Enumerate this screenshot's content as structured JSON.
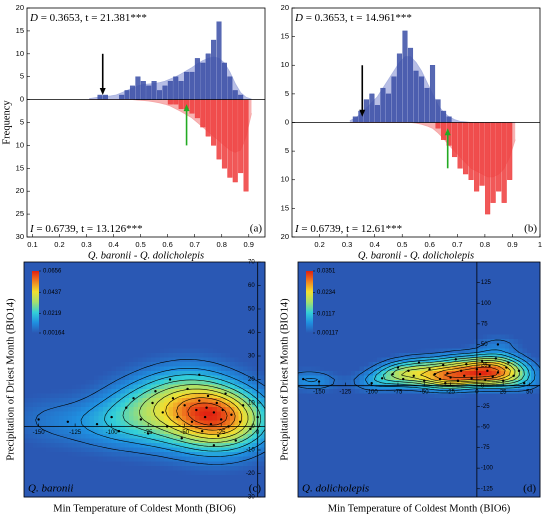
{
  "chart_data": [
    {
      "type": "mirrored_histogram",
      "stat_top": "D",
      "text_top": " = 0.3653, t = 21.381***",
      "stat_bottom": "I",
      "text_bottom": " = 0.6739, t = 13.126***",
      "panel_label": "(a)",
      "xlabel": "Q. baronii - Q. dolicholepis",
      "ylabel": "Frequency",
      "xlim": [
        0.08,
        0.96
      ],
      "xticks": [
        0.1,
        0.2,
        0.3,
        0.4,
        0.5,
        0.6,
        0.7,
        0.8,
        0.9
      ],
      "ylim": [
        0,
        20
      ],
      "yticks": [
        0,
        5,
        10,
        15,
        20
      ],
      "y2lim": [
        0,
        30
      ],
      "y2ticks": [
        5,
        10,
        15,
        20,
        25,
        30
      ],
      "y2_inverted": true,
      "bins": [
        0.3,
        0.32,
        0.34,
        0.36,
        0.38,
        0.4,
        0.42,
        0.44,
        0.46,
        0.48,
        0.5,
        0.52,
        0.54,
        0.56,
        0.58,
        0.6,
        0.62,
        0.64,
        0.66,
        0.68,
        0.7,
        0.72,
        0.74,
        0.76,
        0.78,
        0.8,
        0.82,
        0.84,
        0.86,
        0.88,
        0.9,
        0.92
      ],
      "series": [
        {
          "color": "#3a4ea6",
          "kde_color": "#aab3e0",
          "axis": "y",
          "values": [
            0,
            0,
            1,
            1,
            0,
            0,
            1,
            2,
            3,
            5,
            4,
            3,
            4,
            2,
            3,
            4,
            5,
            4,
            6,
            6,
            9,
            8,
            10,
            13,
            17,
            8,
            5,
            2,
            1,
            0,
            0
          ],
          "kde": [
            0.2,
            0.4,
            0.6,
            0.7,
            0.8,
            1,
            1.5,
            2,
            2.5,
            3,
            3.3,
            3.4,
            3.5,
            3.7,
            4,
            4.5,
            5,
            5.6,
            6.3,
            7,
            7.8,
            8.5,
            9,
            9.3,
            9,
            8,
            6,
            3.5,
            1.5,
            0.5,
            0.1
          ]
        },
        {
          "color": "#ee3b3b",
          "kde_color": "#f6a5a5",
          "axis": "y2",
          "values": [
            0,
            0,
            0,
            0,
            0,
            0,
            0,
            0,
            0,
            0,
            0,
            0,
            0,
            0,
            0,
            1,
            1,
            2,
            2,
            3,
            4,
            6,
            8,
            10,
            13,
            15,
            17,
            18,
            16,
            20,
            0
          ],
          "kde": [
            0,
            0,
            0,
            0,
            0,
            0,
            0,
            0,
            0,
            0.1,
            0.2,
            0.3,
            0.5,
            0.7,
            1,
            1.4,
            2,
            2.6,
            3.3,
            4,
            5,
            6,
            7,
            8,
            9,
            10,
            11,
            11.5,
            11,
            8,
            3
          ]
        }
      ],
      "arrows": [
        {
          "x": 0.36,
          "from": 10,
          "to": 1,
          "axis": "y",
          "color": "#000000"
        },
        {
          "x": 0.67,
          "from": 10,
          "to": 1,
          "axis": "y2",
          "color": "#22aa22"
        }
      ]
    },
    {
      "type": "mirrored_histogram",
      "stat_top": "D",
      "text_top": " = 0.3653, t = 14.961***",
      "stat_bottom": "I",
      "text_bottom": " = 0.6739, t = 12.61***",
      "panel_label": "(b)",
      "xlabel": "Q. baronii - Q. dolicholepis",
      "xlim": [
        0.1,
        1.0
      ],
      "xticks": [
        0.2,
        0.3,
        0.4,
        0.5,
        0.6,
        0.7,
        0.8,
        0.9,
        1.0
      ],
      "ylim": [
        0,
        20
      ],
      "yticks": [
        0,
        5,
        10,
        15,
        20
      ],
      "y2lim": [
        0,
        20
      ],
      "y2ticks": [
        5,
        10,
        15,
        20
      ],
      "y2_inverted": true,
      "bins": [
        0.3,
        0.32,
        0.34,
        0.36,
        0.38,
        0.4,
        0.42,
        0.44,
        0.46,
        0.48,
        0.5,
        0.52,
        0.54,
        0.56,
        0.58,
        0.6,
        0.62,
        0.64,
        0.66,
        0.68,
        0.7,
        0.72,
        0.74,
        0.76,
        0.78,
        0.8,
        0.82,
        0.84,
        0.86,
        0.88,
        0.9,
        0.92
      ],
      "series": [
        {
          "color": "#3a4ea6",
          "kde_color": "#aab3e0",
          "axis": "y",
          "values": [
            0,
            1,
            2,
            4,
            5,
            3,
            6,
            5,
            8,
            12,
            16,
            13,
            9,
            8,
            6,
            10,
            4,
            2,
            1,
            0,
            0,
            0,
            0,
            0,
            0,
            0,
            0,
            0,
            0,
            0,
            0
          ],
          "kde": [
            0.3,
            0.8,
            1.5,
            2.5,
            3.5,
            4.5,
            6,
            7.5,
            9,
            10.5,
            11.5,
            11.5,
            10.5,
            9,
            7,
            5,
            3,
            1.8,
            1,
            0.5,
            0.2,
            0.1,
            0,
            0,
            0,
            0,
            0,
            0,
            0,
            0,
            0
          ]
        },
        {
          "color": "#ee3b3b",
          "kde_color": "#f6a5a5",
          "axis": "y2",
          "values": [
            0,
            0,
            0,
            0,
            0,
            0,
            0,
            0,
            0,
            0,
            0,
            0,
            0,
            0,
            0,
            0,
            1,
            3,
            4,
            6,
            8,
            9,
            10,
            12,
            11,
            16,
            14,
            12,
            14,
            10,
            0
          ],
          "kde": [
            0,
            0,
            0,
            0,
            0,
            0,
            0,
            0,
            0,
            0,
            0,
            0,
            0.1,
            0.3,
            0.6,
            1,
            1.8,
            2.8,
            4,
            5,
            6,
            7,
            8,
            8.5,
            9,
            9.5,
            9.5,
            9,
            8,
            6,
            3
          ]
        }
      ],
      "arrows": [
        {
          "x": 0.355,
          "from": 10,
          "to": 1,
          "axis": "y",
          "color": "#000000"
        },
        {
          "x": 0.665,
          "from": 8,
          "to": 1,
          "axis": "y2",
          "color": "#22aa22"
        }
      ]
    },
    {
      "type": "density",
      "species": "Q. baronii",
      "panel_label": "(c)",
      "xlabel": "Min Temperature of Coldest Month (BIO6)",
      "ylabel": "Precipitation of Driest Month (BIO14)",
      "xlim": [
        -160,
        5
      ],
      "xticks": [
        -150,
        -125,
        -100,
        -75,
        -50,
        -25,
        0
      ],
      "ylim": [
        -30,
        70
      ],
      "yticks": [
        -30,
        -20,
        -10,
        0,
        10,
        20,
        30,
        40,
        50,
        60,
        70
      ],
      "clim": [
        0.00164,
        0.0656
      ],
      "cticks": [
        0.0656,
        0.0437,
        0.0219,
        0.00164
      ],
      "colormap": [
        "#2a58b4",
        "#1f8fe0",
        "#33d0d8",
        "#a6e06e",
        "#f2e030",
        "#f08020",
        "#e02010"
      ],
      "contours": 9,
      "bandwidth": [
        18,
        7
      ],
      "point_color": "#000000",
      "x": [
        -150,
        -130,
        -110,
        -100,
        -95,
        -90,
        -85,
        -80,
        -75,
        -72,
        -70,
        -65,
        -62,
        -60,
        -58,
        -55,
        -52,
        -50,
        -48,
        -45,
        -42,
        -40,
        -38,
        -36,
        -35,
        -34,
        -32,
        -30,
        -28,
        -27,
        -25,
        -24,
        -22,
        -20,
        -18,
        -15,
        -12,
        -10,
        -5,
        0,
        -40,
        -30
      ],
      "y": [
        3,
        2,
        1,
        4,
        -2,
        8,
        12,
        3,
        -3,
        10,
        15,
        6,
        0,
        20,
        12,
        4,
        -5,
        9,
        16,
        2,
        7,
        11,
        -2,
        4,
        8,
        13,
        1,
        6,
        10,
        -4,
        3,
        7,
        14,
        0,
        5,
        -6,
        2,
        9,
        -1,
        4,
        22,
        -8
      ]
    },
    {
      "type": "density",
      "species": "Q. dolicholepis",
      "panel_label": "(d)",
      "xlabel": "Min Temperature of Coldest Month (BIO6)",
      "ylabel": "Precipitation of Driest Month (BIO14)",
      "xlim": [
        -170,
        60
      ],
      "xticks": [
        -150,
        -125,
        -100,
        -75,
        -50,
        -25,
        0,
        25,
        50
      ],
      "ylim": [
        -135,
        150
      ],
      "yticks": [
        -125,
        -100,
        -75,
        -50,
        -25,
        0,
        25,
        50,
        75,
        100,
        125
      ],
      "clim": [
        0.00117,
        0.0351
      ],
      "cticks": [
        0.0351,
        0.0234,
        0.0117,
        0.00117
      ],
      "colormap": [
        "#2a58b4",
        "#1f8fe0",
        "#33d0d8",
        "#a6e06e",
        "#f2e030",
        "#f08020",
        "#e02010"
      ],
      "contours": 9,
      "bandwidth": [
        15,
        8
      ],
      "point_color": "#000000",
      "x": [
        -165,
        -150,
        -100,
        -90,
        -80,
        -75,
        -70,
        -65,
        -60,
        -55,
        -50,
        -45,
        -40,
        -35,
        -32,
        -30,
        -28,
        -25,
        -20,
        -18,
        -15,
        -12,
        -10,
        -5,
        0,
        3,
        5,
        8,
        10,
        12,
        15,
        18,
        20,
        25,
        28,
        30,
        35,
        40,
        45,
        20
      ],
      "y": [
        8,
        5,
        3,
        9,
        14,
        22,
        8,
        18,
        12,
        28,
        6,
        20,
        14,
        8,
        25,
        3,
        15,
        10,
        32,
        6,
        18,
        12,
        26,
        9,
        20,
        14,
        30,
        7,
        18,
        24,
        11,
        33,
        16,
        6,
        22,
        28,
        12,
        18,
        3,
        50
      ]
    }
  ]
}
